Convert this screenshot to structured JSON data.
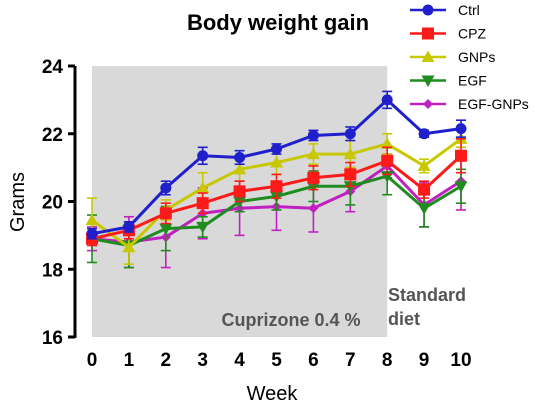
{
  "chart_data": {
    "type": "line",
    "title": "Body weight gain",
    "xlabel": "Week",
    "ylabel": "Grams",
    "x": [
      0,
      1,
      2,
      3,
      4,
      5,
      6,
      7,
      8,
      9,
      10
    ],
    "x_ticks": [
      "0",
      "1",
      "2",
      "3",
      "4",
      "5",
      "6",
      "7",
      "8",
      "9",
      "10"
    ],
    "y_ticks": [
      "16",
      "18",
      "20",
      "22",
      "24"
    ],
    "ylim": [
      16,
      24
    ],
    "xlim": [
      0,
      10
    ],
    "legend_position": "top-right",
    "grid": false,
    "shaded_region": {
      "x_range": [
        0,
        8
      ],
      "color": "#d9d9d9",
      "label": "Cuprizone 0.4 %"
    },
    "annotation": {
      "line1": "Standard",
      "line2": "diet"
    },
    "series": [
      {
        "name": "Ctrl",
        "color": "#1f1fcc",
        "marker": "circle",
        "values": [
          19.05,
          19.25,
          20.4,
          21.35,
          21.3,
          21.55,
          21.95,
          22.0,
          23.0,
          22.0,
          22.15
        ],
        "errors": [
          0.15,
          0.15,
          0.2,
          0.25,
          0.2,
          0.15,
          0.15,
          0.2,
          0.25,
          0.1,
          0.25
        ]
      },
      {
        "name": "CPZ",
        "color": "#ff1a1a",
        "marker": "square",
        "values": [
          18.9,
          19.15,
          19.65,
          19.95,
          20.3,
          20.45,
          20.7,
          20.8,
          21.2,
          20.35,
          21.35
        ],
        "errors": [
          0.2,
          0.25,
          0.3,
          0.3,
          0.3,
          0.35,
          0.35,
          0.35,
          0.4,
          0.25,
          0.5
        ]
      },
      {
        "name": "GNPs",
        "color": "#c8c800",
        "marker": "triangle-up",
        "values": [
          19.45,
          18.65,
          19.75,
          20.4,
          20.95,
          21.15,
          21.4,
          21.4,
          21.7,
          21.05,
          21.85
        ],
        "errors": [
          0.65,
          0.5,
          0.3,
          0.45,
          0.35,
          0.35,
          0.3,
          0.4,
          0.3,
          0.2,
          0.25
        ]
      },
      {
        "name": "EGF",
        "color": "#1e8c1e",
        "marker": "triangle-down",
        "values": [
          18.9,
          18.7,
          19.2,
          19.25,
          20.0,
          20.15,
          20.45,
          20.45,
          20.75,
          19.8,
          20.45
        ],
        "errors": [
          0.7,
          0.65,
          0.65,
          0.3,
          0.3,
          0.4,
          0.45,
          0.55,
          0.55,
          0.55,
          0.5
        ]
      },
      {
        "name": "EGF-GNPs",
        "color": "#c020c0",
        "marker": "diamond",
        "values": [
          18.9,
          18.8,
          18.95,
          19.65,
          19.8,
          19.85,
          19.8,
          20.3,
          21.05,
          19.9,
          20.6
        ],
        "errors": [
          0.35,
          0.75,
          0.9,
          0.75,
          0.8,
          0.7,
          0.7,
          0.6,
          0.35,
          0.65,
          0.85
        ]
      }
    ]
  }
}
